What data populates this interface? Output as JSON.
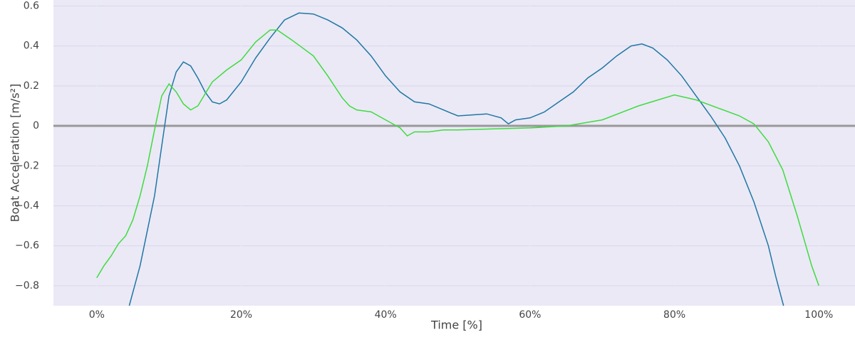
{
  "chart_data": {
    "type": "line",
    "x_label": "Time [%]",
    "y_label": "Boat Acceleration [m/s²]",
    "xlim": [
      -6,
      105
    ],
    "ylim": [
      -0.9,
      0.63
    ],
    "xticks": [
      {
        "value": 0,
        "label": "0%"
      },
      {
        "value": 20,
        "label": "20%"
      },
      {
        "value": 40,
        "label": "40%"
      },
      {
        "value": 60,
        "label": "60%"
      },
      {
        "value": 80,
        "label": "80%"
      },
      {
        "value": 100,
        "label": "100%"
      }
    ],
    "yticks": [
      0.6,
      0.4,
      0.2,
      0,
      {
        "value": -0.2,
        "label": "−0.2"
      },
      {
        "value": -0.4,
        "label": "−0.4"
      },
      {
        "value": -0.6,
        "label": "−0.6"
      },
      {
        "value": -0.8,
        "label": "−0.8"
      }
    ],
    "grid": true,
    "zeroline": true,
    "series": [
      {
        "color": "#1f77a4",
        "x": [
          4.5,
          6,
          8,
          9,
          10,
          11,
          12,
          13,
          14,
          15,
          16,
          17,
          18,
          20,
          22,
          24,
          26,
          28,
          30,
          32,
          34,
          36,
          38,
          40,
          42,
          44,
          46,
          48,
          50,
          52,
          54,
          56,
          57,
          58,
          60,
          62,
          64,
          66,
          68,
          70,
          72,
          74,
          75.5,
          77,
          79,
          81,
          83,
          85,
          87,
          89,
          91,
          93,
          94,
          95.1
        ],
        "values": [
          -0.9,
          -0.7,
          -0.35,
          -0.1,
          0.15,
          0.27,
          0.32,
          0.3,
          0.24,
          0.17,
          0.12,
          0.11,
          0.13,
          0.22,
          0.34,
          0.44,
          0.53,
          0.565,
          0.56,
          0.53,
          0.49,
          0.43,
          0.35,
          0.25,
          0.17,
          0.12,
          0.11,
          0.08,
          0.05,
          0.055,
          0.06,
          0.04,
          0.01,
          0.03,
          0.04,
          0.07,
          0.12,
          0.17,
          0.24,
          0.29,
          0.35,
          0.4,
          0.41,
          0.39,
          0.33,
          0.25,
          0.15,
          0.05,
          -0.06,
          -0.2,
          -0.38,
          -0.6,
          -0.75,
          -0.9
        ]
      },
      {
        "color": "#3ddc3d",
        "x": [
          0,
          1,
          2,
          3,
          4,
          5,
          6,
          7,
          8,
          9,
          10,
          11,
          12,
          13,
          14,
          15,
          16,
          18,
          20,
          22,
          24,
          25,
          27,
          30,
          32,
          34,
          35,
          36,
          38,
          40,
          42,
          43,
          44,
          46,
          48,
          50,
          55,
          60,
          65,
          70,
          75,
          80,
          83,
          86,
          89,
          91,
          93,
          95,
          97,
          99,
          100
        ],
        "values": [
          -0.76,
          -0.7,
          -0.65,
          -0.59,
          -0.55,
          -0.47,
          -0.35,
          -0.2,
          -0.02,
          0.15,
          0.21,
          0.17,
          0.11,
          0.08,
          0.1,
          0.16,
          0.22,
          0.28,
          0.33,
          0.42,
          0.48,
          0.48,
          0.43,
          0.35,
          0.25,
          0.14,
          0.1,
          0.08,
          0.07,
          0.03,
          -0.01,
          -0.05,
          -0.03,
          -0.03,
          -0.02,
          -0.02,
          -0.015,
          -0.01,
          0.0,
          0.03,
          0.1,
          0.155,
          0.13,
          0.09,
          0.05,
          0.01,
          -0.08,
          -0.22,
          -0.45,
          -0.7,
          -0.8
        ]
      }
    ]
  }
}
